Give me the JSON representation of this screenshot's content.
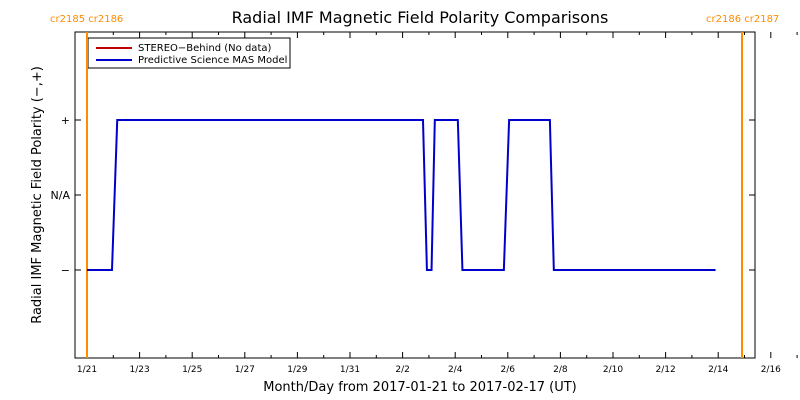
{
  "chart_data": {
    "type": "line",
    "title": "Radial IMF Magnetic Field Polarity Comparisons",
    "xlabel": "Month/Day from 2017-01-21 to 2017-02-17 (UT)",
    "ylabel": "Radial IMF Magnetic Field Polarity (−,+)",
    "x_tick_labels": [
      "1/21",
      "1/23",
      "1/25",
      "1/27",
      "1/29",
      "1/31",
      "2/2",
      "2/4",
      "2/6",
      "2/8",
      "2/10",
      "2/12",
      "2/14",
      "2/16"
    ],
    "y_tick_labels": [
      "+",
      "N/A",
      "−"
    ],
    "carrington_labels": {
      "left": "cr2185 cr2186",
      "right": "cr2186 cr2187"
    },
    "legend": [
      {
        "name": "STEREO−Behind (No data)",
        "color": "#c00000"
      },
      {
        "name": "Predictive Science MAS Model",
        "color": "#0000cc"
      }
    ],
    "series": [
      {
        "name": "Predictive Science MAS Model",
        "color": "#0000cc",
        "points": [
          [
            0.0,
            -1
          ],
          [
            1.9,
            -1
          ],
          [
            2.3,
            1
          ],
          [
            25.55,
            1
          ],
          [
            25.85,
            -1
          ],
          [
            26.2,
            -1
          ],
          [
            26.45,
            1
          ],
          [
            28.2,
            1
          ],
          [
            28.55,
            -1
          ],
          [
            31.7,
            -1
          ],
          [
            32.1,
            1
          ],
          [
            35.2,
            1
          ],
          [
            35.5,
            -1
          ],
          [
            47.8,
            -1
          ]
        ]
      }
    ],
    "colors": {
      "carrington_line": "#ff8c00",
      "model": "#0000cc",
      "stereo": "#c00000"
    }
  }
}
